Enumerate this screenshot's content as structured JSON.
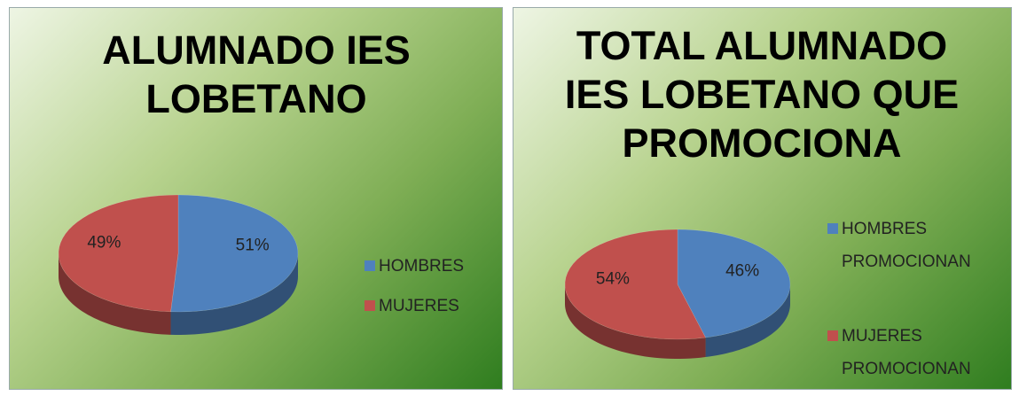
{
  "chart_data": [
    {
      "type": "pie",
      "title": "ALUMNADO IES LOBETANO",
      "categories": [
        "HOMBRES",
        "MUJERES"
      ],
      "values": [
        51,
        49
      ],
      "value_labels": [
        "51%",
        "49%"
      ],
      "colors": [
        "#4f81bd",
        "#c0504d"
      ],
      "legend": "right"
    },
    {
      "type": "pie",
      "title": "TOTAL ALUMNADO IES LOBETANO QUE PROMOCIONA",
      "categories": [
        "HOMBRES PROMOCIONAN",
        "MUJERES PROMOCIONAN"
      ],
      "values": [
        46,
        54
      ],
      "value_labels": [
        "46%",
        "54%"
      ],
      "colors": [
        "#4f81bd",
        "#c0504d"
      ],
      "legend": "right"
    }
  ]
}
